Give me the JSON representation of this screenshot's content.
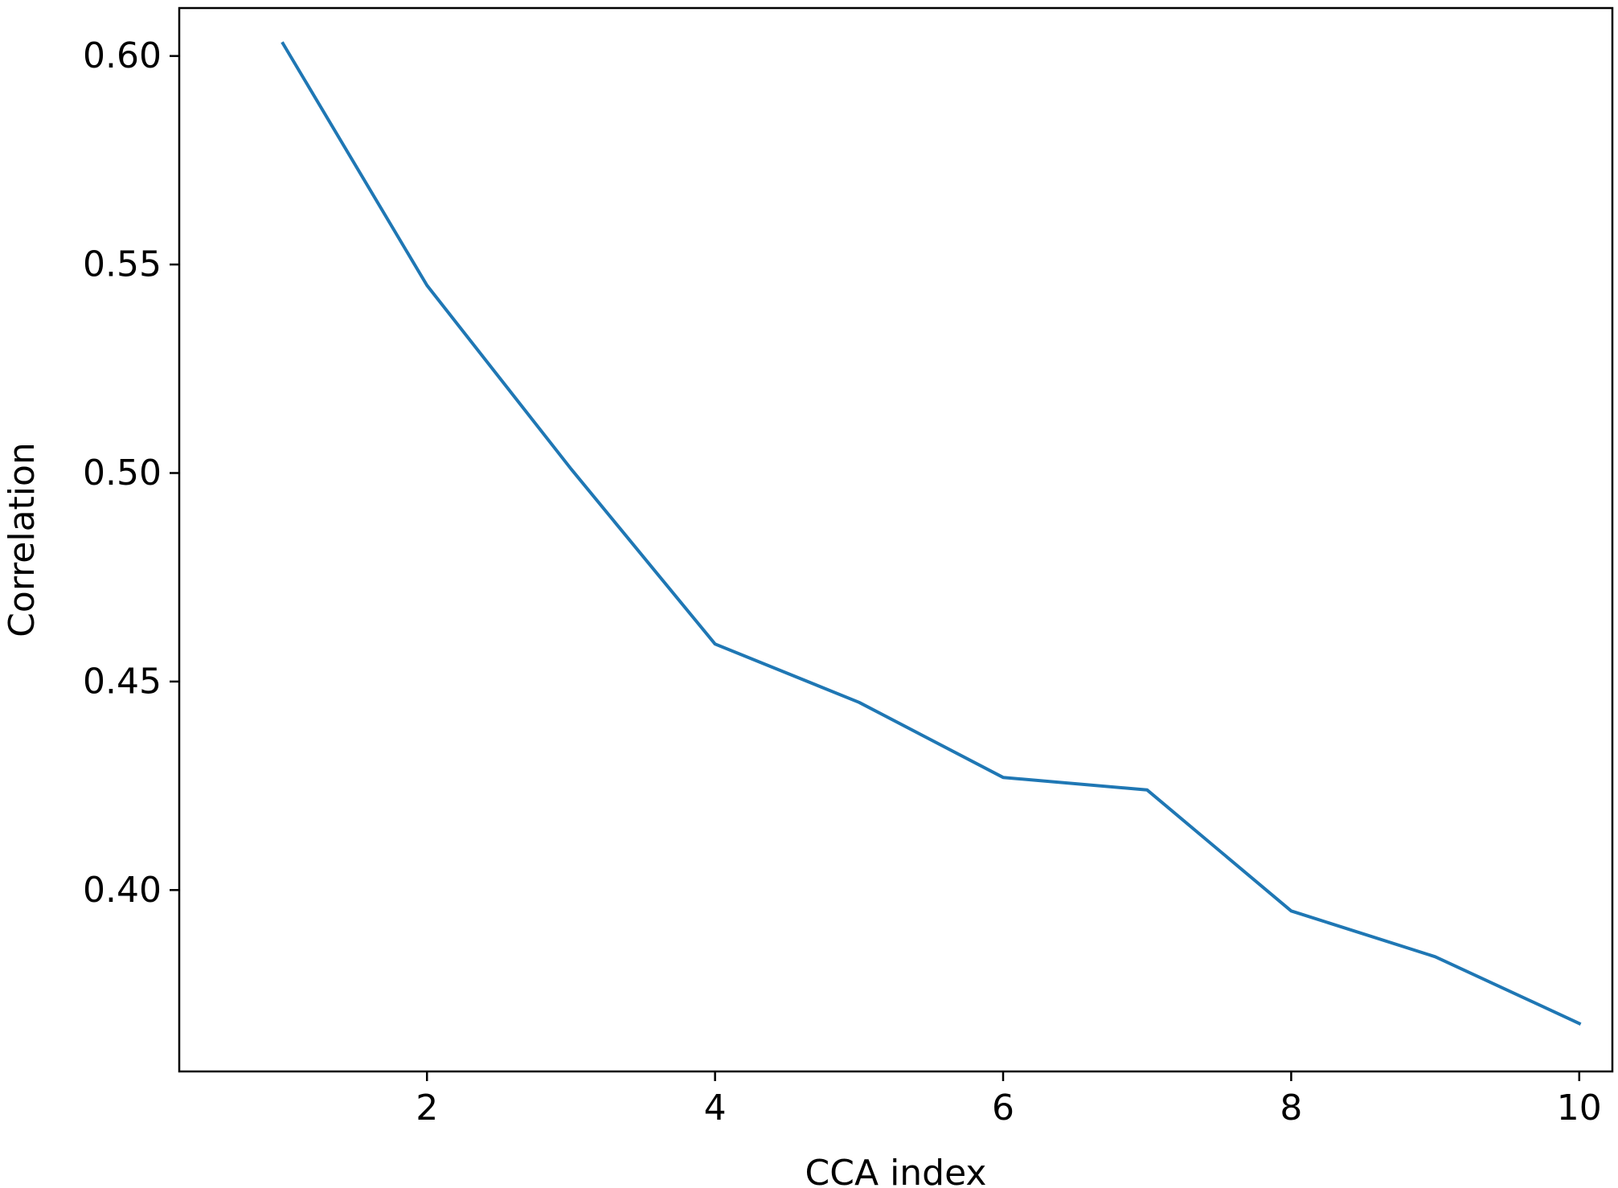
{
  "chart_data": {
    "type": "line",
    "title": "",
    "xlabel": "CCA index",
    "ylabel": "Correlation",
    "xlim": [
      0.28,
      10.23
    ],
    "ylim": [
      0.3565,
      0.6115
    ],
    "x_ticks": [
      2,
      4,
      6,
      8,
      10
    ],
    "x_tick_labels": [
      "2",
      "4",
      "6",
      "8",
      "10"
    ],
    "y_ticks": [
      0.4,
      0.45,
      0.5,
      0.55,
      0.6
    ],
    "y_tick_labels": [
      "0.40",
      "0.45",
      "0.50",
      "0.55",
      "0.60"
    ],
    "grid": false,
    "legend": false,
    "series": [
      {
        "color": "#1f77b4",
        "x": [
          1,
          2,
          3,
          4,
          5,
          6,
          7,
          8,
          9,
          10
        ],
        "y": [
          0.603,
          0.545,
          0.501,
          0.459,
          0.445,
          0.427,
          0.424,
          0.395,
          0.384,
          0.368
        ]
      }
    ]
  }
}
